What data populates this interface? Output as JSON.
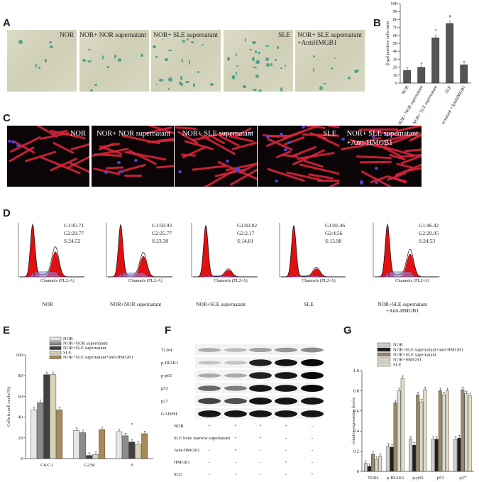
{
  "panels": {
    "A": {
      "label": "A",
      "images": [
        [
          "NOR",
          ""
        ],
        [
          "NOR+ NOR supernatant",
          ""
        ],
        [
          "NOR+ SLE supernatant",
          ""
        ],
        [
          "SLE",
          ""
        ],
        [
          "NOR+ SLE supernatant",
          "+AntiHMGB1"
        ]
      ]
    },
    "C": {
      "label": "C",
      "images": [
        [
          "NOR",
          ""
        ],
        [
          "NOR+ NOR supernatant",
          ""
        ],
        [
          "NOR+ SLE supernatant",
          ""
        ],
        [
          "SLE",
          ""
        ],
        [
          "NOR+ SLE supernatant",
          "+Anti-HMGB1"
        ]
      ]
    },
    "D": {
      "label": "D",
      "stats": [
        [
          "G1:45.71",
          "G2:29.77",
          "S:24.52"
        ],
        [
          "G1:50.93",
          "G2:25.77",
          "S:23.30"
        ],
        [
          "G1:83.02",
          "G2:2.17",
          "S:14.81"
        ],
        [
          "G1:81.46",
          "G2:4.56",
          "S:13.98"
        ],
        [
          "G1:46.42",
          "G2:29.05",
          "S:24.53"
        ]
      ],
      "captions": [
        [
          "NOR",
          ""
        ],
        [
          "NOR+NOR supernatant",
          ""
        ],
        [
          "NOR+SLE supernatant",
          ""
        ],
        [
          "SLE",
          ""
        ],
        [
          "NOR+SLE supernatant",
          "+Anti-HMGB1"
        ]
      ]
    },
    "F": {
      "label": "F",
      "bands": [
        "TLR4",
        "p-IRAK1",
        "p-p65",
        "p53",
        "p27",
        "GADPH"
      ],
      "rows": [
        {
          "name": "NOR",
          "vals": [
            "+",
            "+",
            "+",
            "+",
            "-"
          ]
        },
        {
          "name": "SLE bone marrow supernatant",
          "vals": [
            "-",
            "+",
            "+",
            "-",
            "-"
          ]
        },
        {
          "name": "Anti-HMGB1",
          "vals": [
            "-",
            "+",
            "-",
            "-",
            "-"
          ]
        },
        {
          "name": "HMGB1",
          "vals": [
            "-",
            "-",
            "-",
            "+",
            "-"
          ]
        },
        {
          "name": "SLE",
          "vals": [
            "-",
            "-",
            "-",
            "-",
            "+"
          ]
        }
      ]
    }
  },
  "chart_data": [
    {
      "id": "B",
      "type": "bar",
      "label": "B",
      "ylabel": "β-gal positive cells ratio",
      "ylim": [
        0,
        100
      ],
      "yticks": [
        0,
        10,
        20,
        30,
        40,
        50,
        60,
        70,
        80,
        90,
        100
      ],
      "categories": [
        "NOR",
        "NOR+ NOR supernatant",
        "NOR+ SLE supernatant",
        "SLE",
        "NOR+ SLE supernatant +AntiHMGB1"
      ],
      "values": [
        16,
        20,
        57,
        75,
        23
      ],
      "errors": [
        4,
        5,
        3,
        3,
        4
      ],
      "annotations": [
        "",
        "",
        "*",
        "#",
        ""
      ]
    },
    {
      "id": "E",
      "type": "bar",
      "label": "E",
      "ylabel": "Cells in cell cycle(%)",
      "ylim": [
        0,
        100
      ],
      "yticks": [
        0,
        20,
        40,
        60,
        80,
        100
      ],
      "categories": [
        "G0/G1",
        "G2/M",
        "S"
      ],
      "series": [
        {
          "name": "NOR",
          "color": "#e6e6e6",
          "values": [
            47,
            27,
            26
          ]
        },
        {
          "name": "NOR+NOR supernatant",
          "color": "#8c8c8c",
          "values": [
            54,
            25,
            22
          ]
        },
        {
          "name": "NOR+SLE supernatant",
          "color": "#404040",
          "values": [
            81,
            3,
            16
          ]
        },
        {
          "name": "SLE",
          "color": "#d9d4b8",
          "values": [
            81,
            4,
            14
          ]
        },
        {
          "name": "NOR+SLE supernatant+anti-HMGB1",
          "color": "#a88a5a",
          "values": [
            47,
            28,
            24
          ]
        }
      ],
      "annotations": [
        "",
        "",
        "*"
      ]
    },
    {
      "id": "G",
      "type": "bar",
      "label": "G",
      "ylabel": "relative expression levels",
      "ylim": [
        0,
        1.0
      ],
      "yticks": [
        "0",
        "0.2",
        "0.4",
        "0.6",
        "0.8",
        "1.0"
      ],
      "categories": [
        "TLR4",
        "p-IRAK1",
        "p-p65",
        "p53",
        "p27"
      ],
      "series": [
        {
          "name": "NOR",
          "color": "#cfcfcf",
          "values": [
            0.08,
            0.25,
            0.32,
            0.32,
            0.32
          ]
        },
        {
          "name": "NOR+SLE supernatant+anti-HMGB1",
          "color": "#202020",
          "values": [
            0.05,
            0.24,
            0.26,
            0.32,
            0.33
          ]
        },
        {
          "name": "NOR+SLE supernatant",
          "color": "#9c8a62",
          "values": [
            0.17,
            0.68,
            0.76,
            0.8,
            0.81
          ]
        },
        {
          "name": "NOR+HMGB1",
          "color": "#d8d8d8",
          "values": [
            0.12,
            0.8,
            0.69,
            0.76,
            0.77
          ]
        },
        {
          "name": "SLE",
          "color": "#e2dcc0",
          "values": [
            0.15,
            0.92,
            0.81,
            0.8,
            0.75
          ]
        }
      ]
    }
  ]
}
